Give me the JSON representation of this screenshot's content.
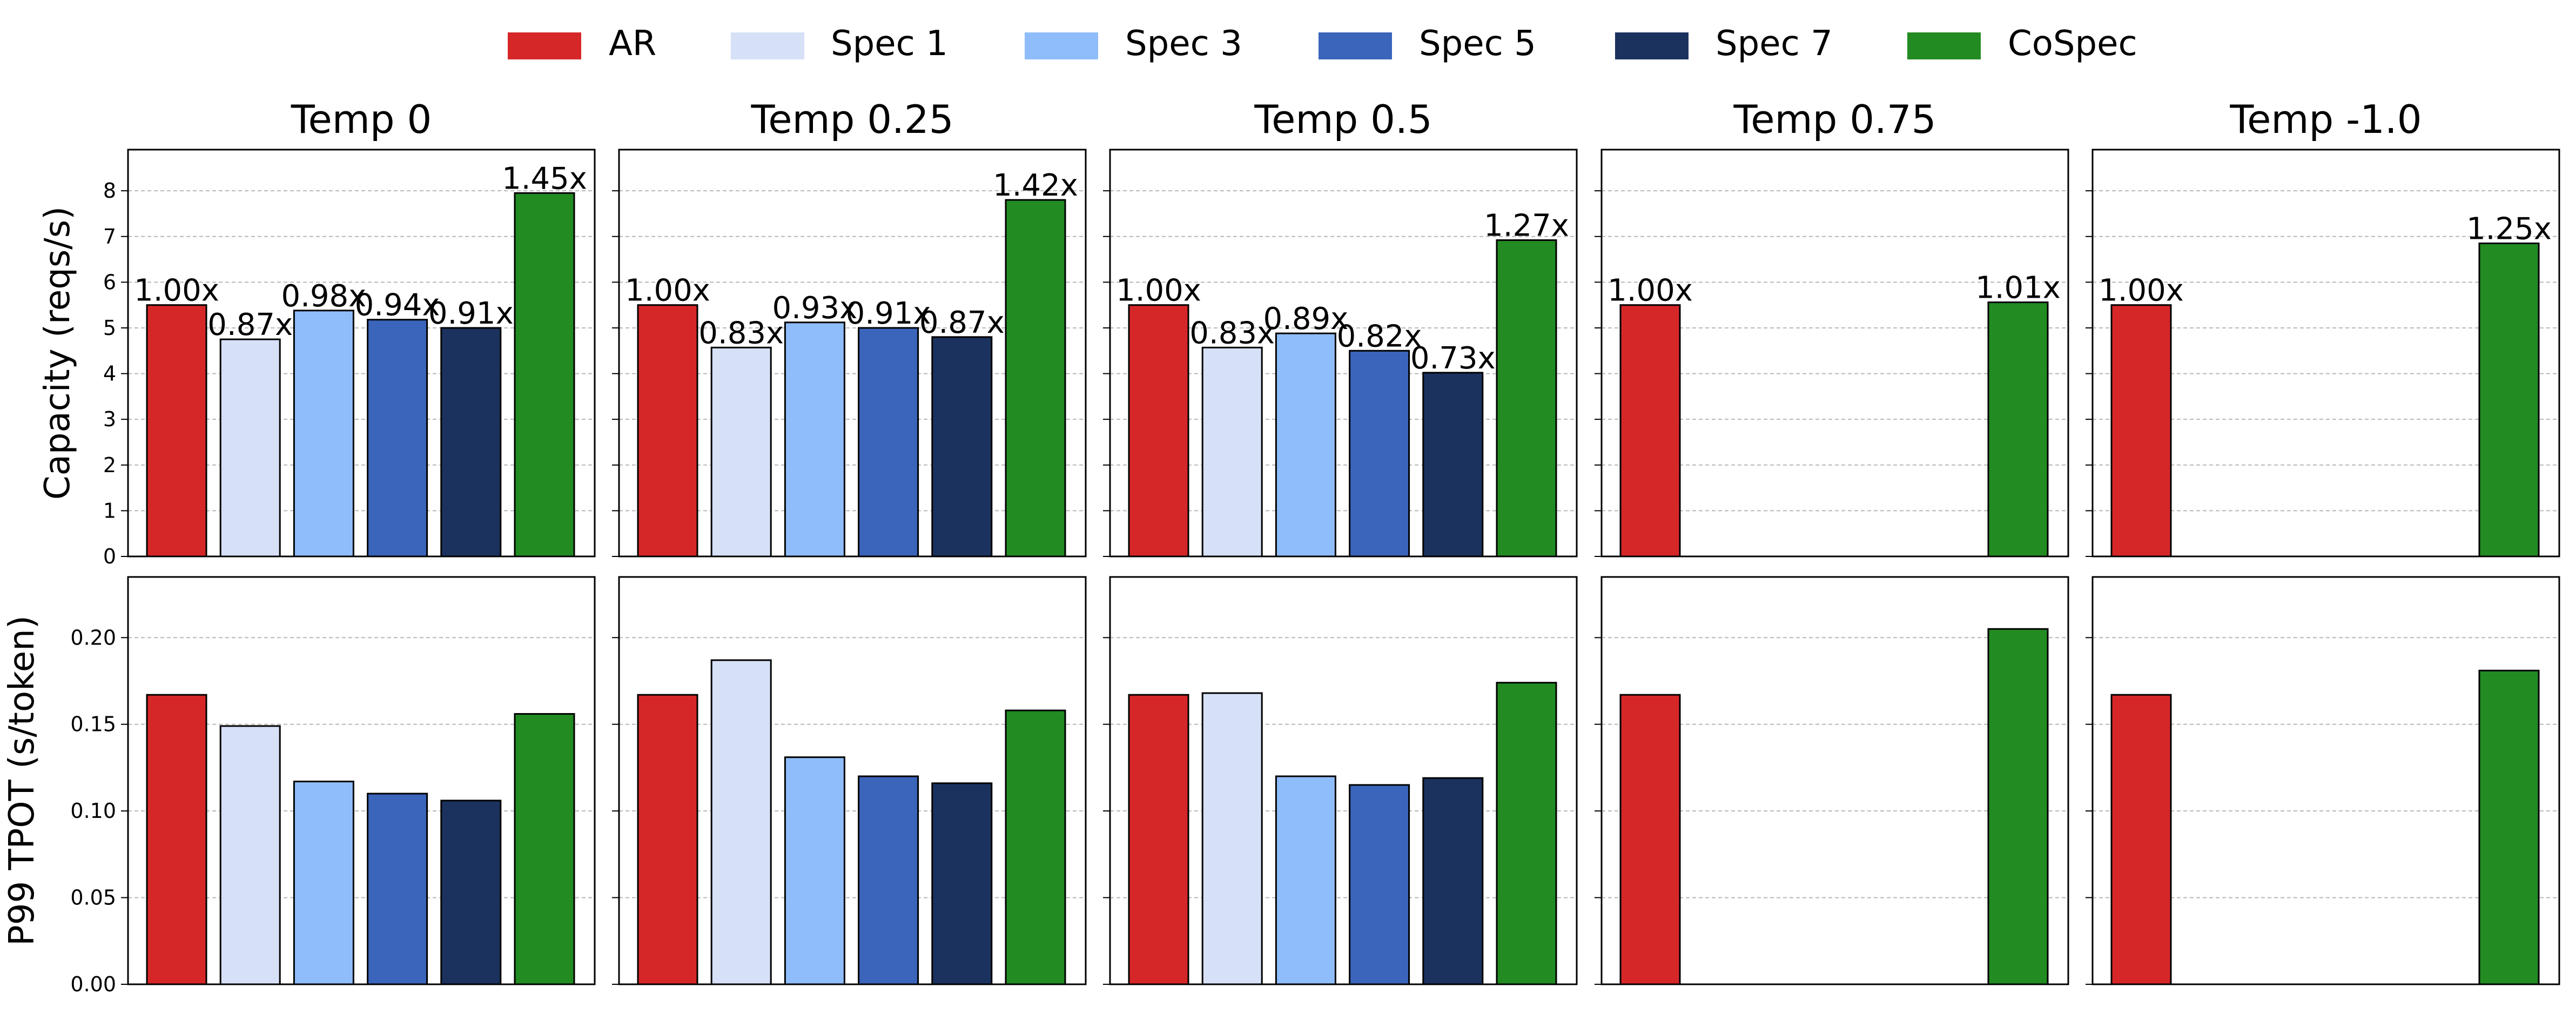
{
  "chart_data": {
    "type": "bar",
    "legend": {
      "placement": "top-center",
      "items": [
        {
          "name": "AR",
          "color": "#d62728"
        },
        {
          "name": "Spec 1",
          "color": "#d6e0f7"
        },
        {
          "name": "Spec 3",
          "color": "#8fbdfb"
        },
        {
          "name": "Spec 5",
          "color": "#3a65bb"
        },
        {
          "name": "Spec 7",
          "color": "#1b325f"
        },
        {
          "name": "CoSpec",
          "color": "#228b22"
        }
      ]
    },
    "panels": [
      {
        "title": "Temp 0"
      },
      {
        "title": "Temp 0.25"
      },
      {
        "title": "Temp 0.5"
      },
      {
        "title": "Temp 0.75"
      },
      {
        "title": "Temp -1.0"
      }
    ],
    "rows": [
      {
        "ylabel": "Capacity (reqs/s)",
        "ylim": [
          0,
          8.9
        ],
        "yticks": [
          0,
          1,
          2,
          3,
          4,
          5,
          6,
          7,
          8
        ],
        "tick_format": "int",
        "grid": true,
        "values": [
          [
            5.5,
            4.75,
            5.38,
            5.18,
            5.0,
            7.95
          ],
          [
            5.5,
            4.57,
            5.12,
            5.0,
            4.8,
            7.8
          ],
          [
            5.5,
            4.57,
            4.88,
            4.5,
            4.02,
            6.92
          ],
          [
            5.5,
            0,
            0,
            0,
            0,
            5.56
          ],
          [
            5.5,
            0,
            0,
            0,
            0,
            6.85
          ]
        ],
        "bar_labels": [
          [
            "1.00x",
            "0.87x",
            "0.98x",
            "0.94x",
            "0.91x",
            "1.45x"
          ],
          [
            "1.00x",
            "0.83x",
            "0.93x",
            "0.91x",
            "0.87x",
            "1.42x"
          ],
          [
            "1.00x",
            "0.83x",
            "0.89x",
            "0.82x",
            "0.73x",
            "1.27x"
          ],
          [
            "1.00x",
            "",
            "",
            "",
            "",
            "1.01x"
          ],
          [
            "1.00x",
            "",
            "",
            "",
            "",
            "1.25x"
          ]
        ]
      },
      {
        "ylabel": "P99 TPOT (s/token)",
        "ylim": [
          0,
          0.235
        ],
        "yticks": [
          0.0,
          0.05,
          0.1,
          0.15,
          0.2
        ],
        "tick_format": "fixed2",
        "grid": true,
        "values": [
          [
            0.167,
            0.149,
            0.117,
            0.11,
            0.106,
            0.156
          ],
          [
            0.167,
            0.187,
            0.131,
            0.12,
            0.116,
            0.158
          ],
          [
            0.167,
            0.168,
            0.12,
            0.115,
            0.119,
            0.174
          ],
          [
            0.167,
            0,
            0,
            0,
            0,
            0.205
          ],
          [
            0.167,
            0,
            0,
            0,
            0,
            0.181
          ]
        ]
      }
    ]
  }
}
